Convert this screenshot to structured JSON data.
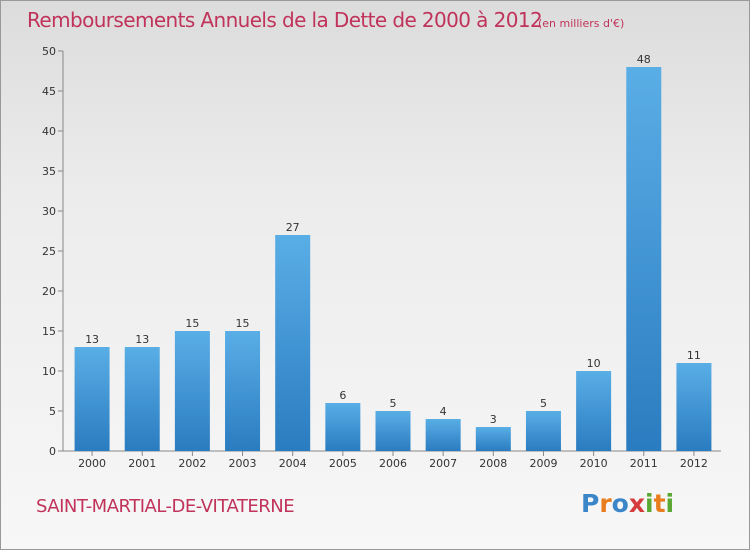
{
  "header": {
    "title": "Remboursements Annuels de la Dette de 2000 à 2012",
    "unit": "(en milliers d'€)"
  },
  "footer": {
    "commune": "SAINT-MARTIAL-DE-VITATERNE",
    "logo_letters": [
      "P",
      "r",
      "o",
      "x",
      "i",
      "t",
      "i"
    ]
  },
  "colors": {
    "title": "#c0335a",
    "bar_light": "#5aaee6",
    "bar_dark": "#2a7cc0",
    "logo": [
      "#3a86c8",
      "#e87d1e",
      "#3a86c8",
      "#d63c3c",
      "#5aa832",
      "#e87d1e",
      "#5aa832"
    ]
  },
  "chart_data": {
    "type": "bar",
    "title": "Remboursements Annuels de la Dette de 2000 à 2012",
    "subtitle": "(en milliers d'€)",
    "categories": [
      "2000",
      "2001",
      "2002",
      "2003",
      "2004",
      "2005",
      "2006",
      "2007",
      "2008",
      "2009",
      "2010",
      "2011",
      "2012"
    ],
    "values": [
      13,
      13,
      15,
      15,
      27,
      6,
      5,
      4,
      3,
      5,
      10,
      48,
      11
    ],
    "ylim": [
      0,
      50
    ],
    "yticks": [
      0,
      5,
      10,
      15,
      20,
      25,
      30,
      35,
      40,
      45,
      50
    ],
    "xlabel": "",
    "ylabel": "",
    "grid": false,
    "legend": "none"
  }
}
